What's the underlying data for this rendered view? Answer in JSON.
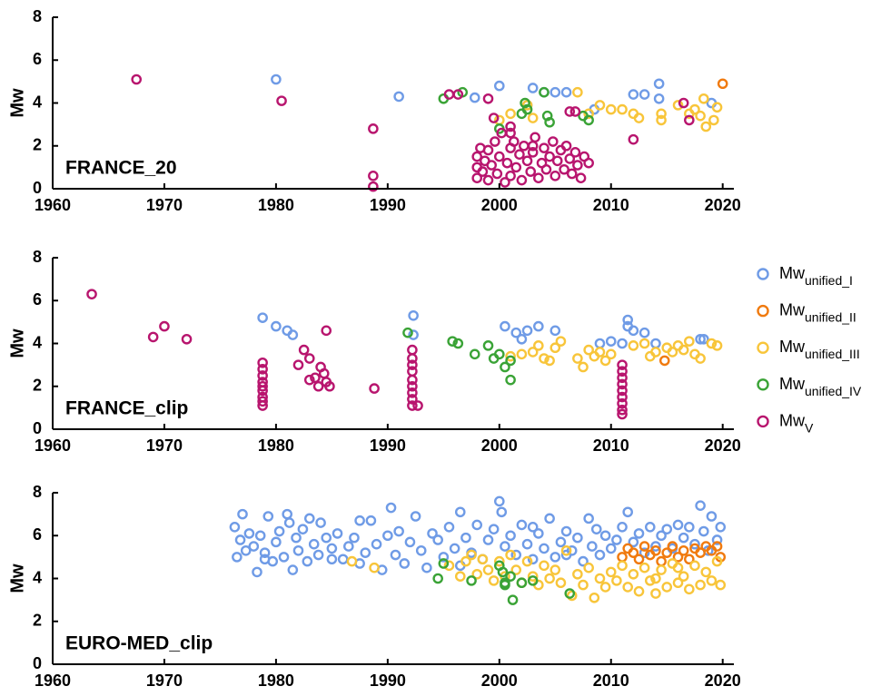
{
  "legend": [
    {
      "name": "Mw",
      "subscript": "unified_I",
      "color": "#6f9be6"
    },
    {
      "name": "Mw",
      "subscript": "unified_II",
      "color": "#f07a0e"
    },
    {
      "name": "Mw",
      "subscript": "unified_III",
      "color": "#f8c53a"
    },
    {
      "name": "Mw",
      "subscript": "unified_IV",
      "color": "#3aa336"
    },
    {
      "name": "Mw",
      "subscript": "V",
      "color": "#b8156e"
    }
  ],
  "chart_data": [
    {
      "type": "scatter",
      "label": "FRANCE_20",
      "y_label": "Mw",
      "xlim": [
        1960,
        2021
      ],
      "xticks": [
        1960,
        1970,
        1980,
        1990,
        2000,
        2010,
        2020
      ],
      "ylim": [
        0,
        8
      ],
      "yticks": [
        0,
        2,
        4,
        6,
        8
      ],
      "series": [
        {
          "x": [
            1980,
            1991,
            1997.8,
            2000,
            2003,
            2004,
            2005,
            2006,
            2002.5,
            2012,
            2013,
            2014.3,
            2014.3,
            2019,
            2008.5
          ],
          "values": [
            5.1,
            4.3,
            4.25,
            4.8,
            4.7,
            4.5,
            4.5,
            4.5,
            3.9,
            4.4,
            4.4,
            4.9,
            4.2,
            4.0,
            3.7
          ]
        },
        {
          "x": [
            2020
          ],
          "values": [
            4.9
          ]
        },
        {
          "x": [
            2000,
            2001,
            2002.5,
            2003,
            2007,
            2008,
            2009,
            2010,
            2012,
            2012.5,
            2014.5,
            2014.5,
            2016,
            2017,
            2018,
            2018.3,
            2018.5,
            2019.2,
            2019.5,
            2011,
            2017.5
          ],
          "values": [
            3.2,
            3.5,
            3.9,
            3.3,
            4.5,
            3.5,
            3.9,
            3.7,
            3.5,
            3.3,
            3.5,
            3.2,
            3.9,
            3.5,
            3.4,
            4.2,
            2.9,
            3.2,
            3.8,
            3.7,
            3.7
          ]
        },
        {
          "x": [
            1995,
            1996.7,
            2000,
            2002,
            2002.5,
            2002.3,
            2004,
            2004.5,
            2007.5,
            2008,
            2004.3
          ],
          "values": [
            4.2,
            4.5,
            2.8,
            3.5,
            3.7,
            4.0,
            4.5,
            3.1,
            3.4,
            3.2,
            3.4
          ]
        },
        {
          "x": [
            1967.5,
            1980.5,
            1988.7,
            1988.7,
            1988.7,
            1995.5,
            1996.3,
            1999,
            2012,
            2016.5,
            2017,
            1999.5,
            2001,
            2006.3,
            2006.8,
            1998,
            1998,
            1998,
            1998.3,
            1998.5,
            1998.7,
            1999,
            1999,
            1999.3,
            1999.6,
            1999.8,
            2000,
            2000.2,
            2000.5,
            2000.7,
            2001,
            2001,
            2001.3,
            2001.5,
            2001.8,
            2002,
            2002.2,
            2002.5,
            2002.8,
            2003,
            2003.2,
            2003.5,
            2003.8,
            2004,
            2004.2,
            2004.5,
            2004.8,
            2005,
            2005.2,
            2005.5,
            2005.8,
            2006,
            2006.3,
            2006.5,
            2006.8,
            2007,
            2007.3,
            2007.6,
            2008,
            2001,
            2003
          ],
          "values": [
            5.1,
            4.1,
            2.8,
            0.6,
            0.1,
            4.4,
            4.4,
            4.2,
            2.3,
            4.0,
            3.2,
            3.3,
            2.9,
            3.6,
            3.6,
            0.5,
            1.0,
            1.5,
            1.9,
            0.8,
            1.3,
            0.4,
            1.8,
            1.1,
            2.2,
            0.7,
            1.5,
            2.6,
            0.3,
            1.2,
            1.9,
            0.6,
            2.2,
            1.0,
            1.6,
            0.4,
            2.0,
            1.3,
            0.8,
            1.7,
            2.4,
            0.5,
            1.2,
            1.9,
            0.9,
            1.5,
            2.2,
            0.6,
            1.3,
            1.8,
            0.9,
            2.0,
            1.4,
            0.7,
            1.7,
            1.1,
            0.5,
            1.5,
            1.2,
            2.6,
            2.0
          ]
        }
      ]
    },
    {
      "type": "scatter",
      "label": "FRANCE_clip",
      "y_label": "Mw",
      "xlim": [
        1960,
        2021
      ],
      "xticks": [
        1960,
        1970,
        1980,
        1990,
        2000,
        2010,
        2020
      ],
      "ylim": [
        0,
        8
      ],
      "yticks": [
        0,
        2,
        4,
        6,
        8
      ],
      "series": [
        {
          "x": [
            1978.8,
            1980,
            1981,
            1981.5,
            1992.3,
            1992.3,
            2000.5,
            2001.5,
            2002,
            2002.5,
            2003.5,
            2005,
            2009,
            2010,
            2011.5,
            2011.5,
            2012,
            2013,
            2014,
            2018,
            2018.3,
            2011
          ],
          "values": [
            5.2,
            4.8,
            4.6,
            4.4,
            5.3,
            4.4,
            4.8,
            4.5,
            4.2,
            4.6,
            4.8,
            4.6,
            4.0,
            4.1,
            5.1,
            4.8,
            4.6,
            4.5,
            4.0,
            4.2,
            4.2,
            4.0
          ]
        },
        {
          "x": [
            2014.8
          ],
          "values": [
            3.2
          ]
        },
        {
          "x": [
            2001,
            2002,
            2003,
            2003.5,
            2004,
            2004.5,
            2005,
            2005.5,
            2007,
            2007.5,
            2008,
            2008.5,
            2009,
            2009.5,
            2010,
            2012,
            2013,
            2013.5,
            2014,
            2015,
            2015.5,
            2016,
            2016.5,
            2017,
            2017.5,
            2018,
            2019,
            2019.5
          ],
          "values": [
            3.4,
            3.5,
            3.6,
            3.9,
            3.3,
            3.2,
            3.8,
            4.1,
            3.3,
            2.9,
            3.7,
            3.4,
            3.6,
            3.2,
            3.5,
            3.9,
            4.0,
            3.4,
            3.6,
            3.8,
            3.6,
            3.9,
            3.7,
            4.1,
            3.5,
            3.3,
            4.0,
            3.9
          ]
        },
        {
          "x": [
            1991.8,
            1995.8,
            1996.3,
            1997.8,
            1999,
            1999.5,
            2000,
            2000.5,
            2001,
            2001
          ],
          "values": [
            4.5,
            4.1,
            4.0,
            3.5,
            3.9,
            3.3,
            3.5,
            2.9,
            3.2,
            2.3
          ]
        },
        {
          "x": [
            1963.5,
            1969,
            1970,
            1972,
            1978.8,
            1978.8,
            1978.8,
            1978.8,
            1978.8,
            1978.8,
            1978.8,
            1978.8,
            1978.8,
            1982,
            1982.5,
            1983,
            1983.5,
            1983.8,
            1984,
            1984.3,
            1984.5,
            1984.5,
            1983,
            1984.8,
            1988.8,
            1992.2,
            1992.2,
            1992.2,
            1992.2,
            1992.2,
            1992.2,
            1992.2,
            1992.2,
            1992.2,
            1992.7,
            2011,
            2011,
            2011,
            2011,
            2011,
            2011,
            2011,
            2011,
            2011
          ],
          "values": [
            6.3,
            4.3,
            4.8,
            4.2,
            3.1,
            2.8,
            2.5,
            2.2,
            2.0,
            1.8,
            1.5,
            1.3,
            1.1,
            3.0,
            3.7,
            3.3,
            2.4,
            2.0,
            2.9,
            2.6,
            2.2,
            4.6,
            2.3,
            2.0,
            1.9,
            3.7,
            3.3,
            3.0,
            2.7,
            2.3,
            2.0,
            1.7,
            1.4,
            1.1,
            1.1,
            3.0,
            2.7,
            2.4,
            2.1,
            1.8,
            1.5,
            1.2,
            0.9,
            0.7
          ]
        }
      ]
    },
    {
      "type": "scatter",
      "label": "EURO-MED_clip",
      "y_label": "Mw",
      "xlim": [
        1960,
        2021
      ],
      "xticks": [
        1960,
        1970,
        1980,
        1990,
        2000,
        2010,
        2020
      ],
      "ylim": [
        0,
        8
      ],
      "yticks": [
        0,
        2,
        4,
        6,
        8
      ],
      "series": [
        {
          "x": [
            1976.3,
            1976.5,
            1976.8,
            1977,
            1977.3,
            1977.6,
            1978,
            1978.3,
            1978.6,
            1979,
            1979.3,
            1979.7,
            1980,
            1980.3,
            1980.7,
            1981,
            1981.2,
            1981.5,
            1981.8,
            1982,
            1982.4,
            1982.8,
            1983,
            1983.4,
            1983.8,
            1984,
            1984.5,
            1985,
            1985.5,
            1986,
            1986.5,
            1987,
            1987.5,
            1988,
            1988.5,
            1989,
            1989.5,
            1990,
            1990.3,
            1990.7,
            1991,
            1991.5,
            1992,
            1992.5,
            1993,
            1993.5,
            1994,
            1994.5,
            1995,
            1995.5,
            1996,
            1996.5,
            1997,
            1997.5,
            1998,
            1998.5,
            1999,
            1999.5,
            2000,
            2000.2,
            2000.5,
            2001,
            2001.5,
            2002,
            2002.5,
            2003,
            2003.5,
            2004,
            2004.5,
            2005,
            2005.5,
            2006,
            2006.5,
            2007,
            2007.5,
            2008,
            2008.3,
            2008.7,
            2009,
            2009.5,
            2010,
            2010.5,
            2011,
            2011.5,
            2012,
            2012.5,
            2013,
            2013.5,
            2014,
            2014.5,
            2015,
            2015.5,
            2016,
            2016.5,
            2017,
            2017.5,
            2018,
            2018.3,
            2018.7,
            2019,
            2019.5,
            2019.8,
            1987.5,
            1979,
            1985,
            1996.5,
            2003,
            2006
          ],
          "values": [
            6.4,
            5.0,
            5.8,
            7.0,
            5.3,
            6.1,
            5.5,
            4.3,
            6.0,
            5.2,
            6.9,
            4.8,
            5.7,
            6.2,
            5.0,
            7.0,
            6.6,
            4.4,
            5.9,
            5.3,
            6.3,
            4.8,
            6.8,
            5.6,
            5.1,
            6.6,
            5.9,
            5.4,
            6.1,
            4.9,
            5.5,
            5.9,
            4.7,
            5.2,
            6.7,
            5.6,
            4.4,
            6.0,
            7.3,
            5.1,
            6.2,
            4.7,
            5.7,
            6.9,
            5.3,
            4.5,
            6.1,
            5.8,
            5.0,
            6.4,
            5.4,
            7.1,
            5.9,
            5.2,
            6.5,
            4.9,
            5.8,
            6.3,
            7.6,
            7.1,
            5.5,
            6.0,
            5.1,
            6.5,
            5.6,
            4.9,
            6.1,
            5.4,
            6.8,
            5.0,
            5.7,
            6.2,
            5.3,
            5.9,
            4.8,
            6.8,
            5.5,
            6.3,
            5.1,
            6.0,
            5.4,
            5.8,
            6.4,
            7.1,
            5.7,
            6.1,
            5.2,
            6.4,
            5.5,
            6.0,
            6.3,
            5.4,
            6.5,
            5.9,
            6.4,
            5.6,
            7.4,
            6.2,
            5.3,
            6.9,
            5.8,
            6.4,
            6.7,
            4.9,
            4.9,
            4.6,
            6.4,
            5.1
          ]
        },
        {
          "x": [
            2011,
            2011.5,
            2012,
            2012.5,
            2013,
            2013.5,
            2014,
            2014.5,
            2015,
            2015.5,
            2016,
            2016.5,
            2017,
            2017.5,
            2018,
            2018.5,
            2019,
            2019.5,
            2019.8
          ],
          "values": [
            5.0,
            5.4,
            5.2,
            4.9,
            5.5,
            5.1,
            5.3,
            4.8,
            5.2,
            5.5,
            5.0,
            5.3,
            4.9,
            5.4,
            5.2,
            5.5,
            5.3,
            5.5,
            5.0
          ]
        },
        {
          "x": [
            1986.8,
            1988.8,
            1995.5,
            1996.5,
            1997,
            1997.5,
            1998,
            1998.5,
            1999,
            1999.5,
            2000,
            2000.5,
            2001,
            2001.5,
            2002,
            2002.5,
            2003,
            2003.5,
            2004,
            2004.5,
            2005,
            2005.5,
            2006,
            2006.5,
            2007,
            2007.5,
            2008,
            2008.5,
            2009,
            2009.5,
            2010,
            2010.5,
            2011,
            2011.5,
            2012,
            2012.5,
            2013,
            2013.5,
            2014,
            2014.5,
            2015,
            2015.5,
            2016,
            2016.5,
            2017,
            2017.5,
            2018,
            2018.5,
            2019,
            2019.5,
            2019.8,
            2014,
            2016
          ],
          "values": [
            4.8,
            4.5,
            4.6,
            4.1,
            4.8,
            5.1,
            4.2,
            4.9,
            4.4,
            3.9,
            4.8,
            4.1,
            5.1,
            4.4,
            3.8,
            4.8,
            4.1,
            3.7,
            4.6,
            4.0,
            4.4,
            3.8,
            5.3,
            3.2,
            4.2,
            3.7,
            4.5,
            3.1,
            4.0,
            3.6,
            4.3,
            3.9,
            4.6,
            3.6,
            4.2,
            3.4,
            4.5,
            3.9,
            3.3,
            4.4,
            3.6,
            4.7,
            3.8,
            4.1,
            3.5,
            4.6,
            3.7,
            4.3,
            3.9,
            4.8,
            3.7,
            4.0,
            4.5
          ]
        },
        {
          "x": [
            1994.5,
            1995,
            1997.5,
            2000,
            2000.3,
            2000.5,
            2000.5,
            2001,
            2001.2,
            2002,
            2003,
            2006.3
          ],
          "values": [
            4.0,
            4.7,
            3.9,
            4.6,
            4.3,
            3.8,
            3.7,
            4.1,
            3.0,
            3.8,
            3.9,
            3.3
          ]
        },
        {
          "x": [],
          "values": []
        }
      ]
    }
  ]
}
